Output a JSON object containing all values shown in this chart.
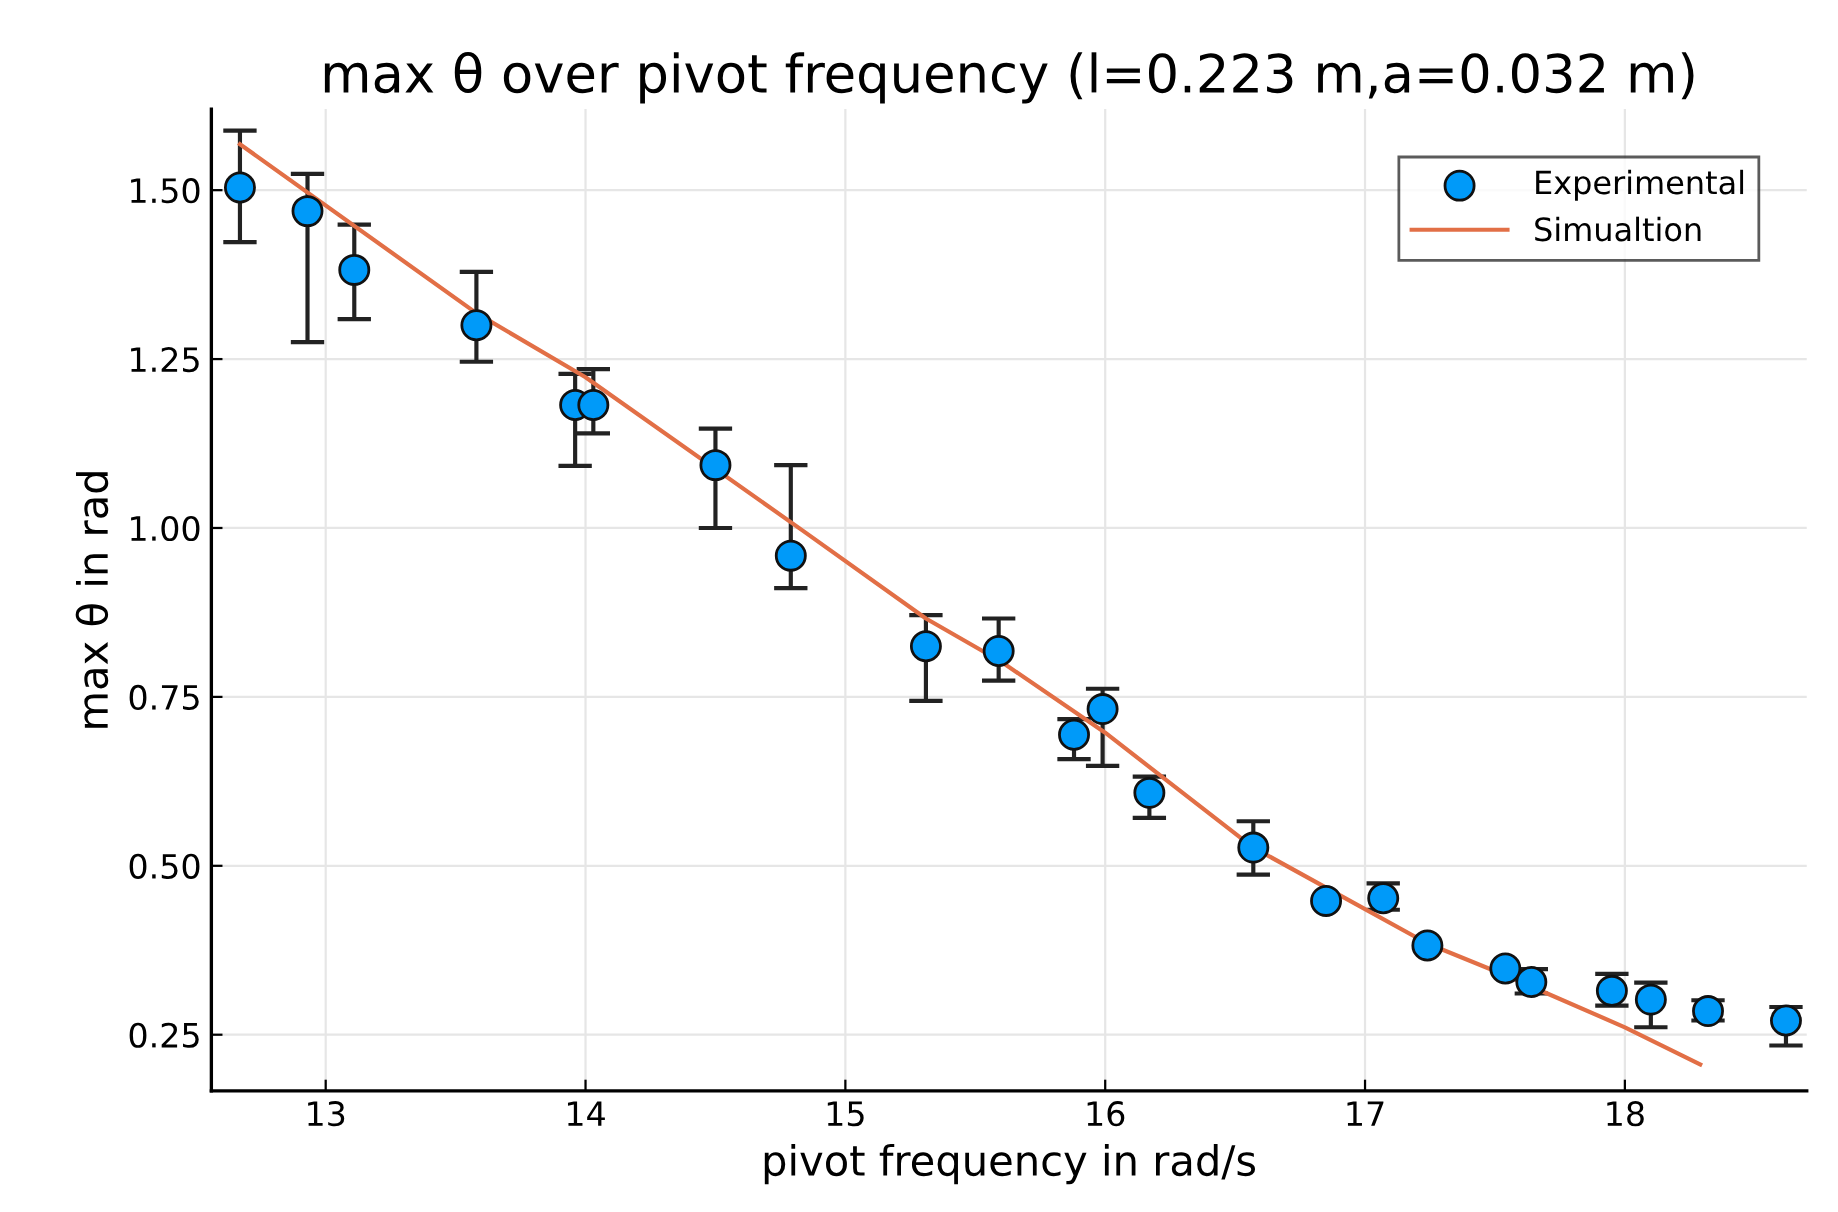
{
  "chart_data": {
    "type": "scatter",
    "title": "max θ over pivot frequency (l=0.223 m,a=0.032 m)",
    "xlabel": "pivot frequency in rad/s",
    "ylabel": "max θ in rad",
    "xlim": [
      12.56,
      18.7
    ],
    "ylim": [
      0.167,
      1.62
    ],
    "xticks": [
      13,
      14,
      15,
      16,
      17,
      18
    ],
    "yticks": [
      {
        "value": 0.25,
        "label": "0.25"
      },
      {
        "value": 0.5,
        "label": "0.50"
      },
      {
        "value": 0.75,
        "label": "0.75"
      },
      {
        "value": 1.0,
        "label": "1.00"
      },
      {
        "value": 1.25,
        "label": "1.25"
      },
      {
        "value": 1.5,
        "label": "1.50"
      }
    ],
    "grid": true,
    "legend": "top right",
    "marker": "circle",
    "series": [
      {
        "name": "Experimental",
        "color": "#009af9",
        "x": [
          12.67,
          12.93,
          13.11,
          13.58,
          13.96,
          14.03,
          14.5,
          14.79,
          15.31,
          15.59,
          15.88,
          15.99,
          16.17,
          16.57,
          16.85,
          17.07,
          17.24,
          17.54,
          17.64,
          17.95,
          18.1,
          18.32,
          18.62
        ],
        "values": [
          1.504,
          1.469,
          1.382,
          1.3,
          1.182,
          1.182,
          1.093,
          0.959,
          0.825,
          0.818,
          0.694,
          0.732,
          0.608,
          0.527,
          0.448,
          0.452,
          0.382,
          0.348,
          0.328,
          0.315,
          0.302,
          0.285,
          0.271
        ],
        "errors": [
          [
            1.423,
            1.588
          ],
          [
            1.275,
            1.524
          ],
          [
            1.309,
            1.449
          ],
          [
            1.246,
            1.379
          ],
          [
            1.092,
            1.228
          ],
          [
            1.14,
            1.235
          ],
          [
            1.0,
            1.147
          ],
          [
            0.911,
            1.093
          ],
          [
            0.744,
            0.871
          ],
          [
            0.774,
            0.866
          ],
          [
            0.658,
            0.717
          ],
          [
            0.648,
            0.762
          ],
          [
            0.571,
            0.632
          ],
          [
            0.487,
            0.566
          ],
          null,
          [
            0.435,
            0.474
          ],
          null,
          null,
          [
            0.311,
            0.347
          ],
          [
            0.293,
            0.34
          ],
          [
            0.261,
            0.327
          ],
          [
            0.271,
            0.301
          ],
          [
            0.234,
            0.291
          ]
        ]
      },
      {
        "name": "Simualtion",
        "type": "line",
        "color": "#e26f46",
        "marker": "none",
        "line_style": "solid",
        "x": [
          12.67,
          13.58,
          14.0,
          14.84,
          15.31,
          15.6,
          16.0,
          16.57,
          17.0,
          17.24,
          17.54,
          18.0,
          18.29
        ],
        "values": [
          1.568,
          1.318,
          1.223,
          0.995,
          0.866,
          0.802,
          0.697,
          0.527,
          0.436,
          0.385,
          0.338,
          0.261,
          0.206
        ]
      }
    ]
  }
}
